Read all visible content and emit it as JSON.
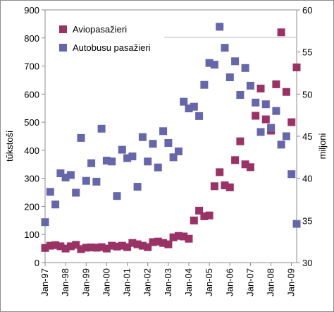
{
  "chart_data": {
    "type": "scatter",
    "title": "",
    "xlabel": "",
    "ylabel_left": "tūkstoši",
    "ylabel_right": "miljoni",
    "ylim_left": [
      0,
      900
    ],
    "ylim_right": [
      30,
      60
    ],
    "yticks_left": [
      "0",
      "100",
      "200",
      "300",
      "400",
      "500",
      "600",
      "700",
      "800",
      "900"
    ],
    "yticks_right": [
      "30",
      "35",
      "40",
      "45",
      "50",
      "55",
      "60"
    ],
    "x_range": [
      1997.0,
      2009.25
    ],
    "x_ticks": [
      {
        "x": 1997.0,
        "label": "Jan-97"
      },
      {
        "x": 1998.0,
        "label": "Jan-98"
      },
      {
        "x": 1999.0,
        "label": "Jan-99"
      },
      {
        "x": 2000.0,
        "label": "Jan-00"
      },
      {
        "x": 2001.0,
        "label": "Jan-01"
      },
      {
        "x": 2002.0,
        "label": "Jan-02"
      },
      {
        "x": 2003.0,
        "label": "Jan-03"
      },
      {
        "x": 2004.0,
        "label": "Jan-04"
      },
      {
        "x": 2005.0,
        "label": "Jan-05"
      },
      {
        "x": 2006.0,
        "label": "Jan-06"
      },
      {
        "x": 2007.0,
        "label": "Jan-07"
      },
      {
        "x": 2008.0,
        "label": "Jan-08"
      },
      {
        "x": 2009.0,
        "label": "Jan-09"
      }
    ],
    "grid": false,
    "legend_position": "top-left",
    "series": [
      {
        "name": "Aviopasažieri",
        "axis": "left",
        "color": "#993366",
        "points": [
          [
            1997.0,
            52
          ],
          [
            1997.25,
            60
          ],
          [
            1997.5,
            62
          ],
          [
            1997.75,
            58
          ],
          [
            1998.0,
            50
          ],
          [
            1998.25,
            58
          ],
          [
            1998.5,
            63
          ],
          [
            1998.75,
            48
          ],
          [
            1999.0,
            53
          ],
          [
            1999.25,
            54
          ],
          [
            1999.5,
            53
          ],
          [
            1999.75,
            55
          ],
          [
            2000.0,
            50
          ],
          [
            2000.25,
            60
          ],
          [
            2000.5,
            57
          ],
          [
            2000.75,
            60
          ],
          [
            2001.0,
            55
          ],
          [
            2001.25,
            70
          ],
          [
            2001.5,
            65
          ],
          [
            2001.75,
            60
          ],
          [
            2002.0,
            55
          ],
          [
            2002.25,
            73
          ],
          [
            2002.5,
            75
          ],
          [
            2002.75,
            70
          ],
          [
            2003.0,
            65
          ],
          [
            2003.25,
            90
          ],
          [
            2003.5,
            95
          ],
          [
            2003.75,
            93
          ],
          [
            2004.0,
            85
          ],
          [
            2004.25,
            150
          ],
          [
            2004.5,
            185
          ],
          [
            2004.75,
            165
          ],
          [
            2005.0,
            168
          ],
          [
            2005.25,
            272
          ],
          [
            2005.5,
            322
          ],
          [
            2005.75,
            275
          ],
          [
            2006.0,
            268
          ],
          [
            2006.25,
            365
          ],
          [
            2006.5,
            432
          ],
          [
            2006.75,
            350
          ],
          [
            2007.0,
            340
          ],
          [
            2007.25,
            523
          ],
          [
            2007.5,
            620
          ],
          [
            2007.75,
            510
          ],
          [
            2008.0,
            470
          ],
          [
            2008.25,
            635
          ],
          [
            2008.5,
            820
          ],
          [
            2008.75,
            608
          ],
          [
            2009.0,
            500
          ],
          [
            2009.25,
            695
          ]
        ]
      },
      {
        "name": "Autobusu pasažieri",
        "axis": "right",
        "color": "#6666aa",
        "points": [
          [
            1997.0,
            34.8
          ],
          [
            1997.25,
            38.4
          ],
          [
            1997.5,
            36.9
          ],
          [
            1997.75,
            40.6
          ],
          [
            1998.0,
            40.1
          ],
          [
            1998.25,
            40.4
          ],
          [
            1998.5,
            38.3
          ],
          [
            1998.75,
            44.8
          ],
          [
            1999.0,
            39.7
          ],
          [
            1999.25,
            41.8
          ],
          [
            1999.5,
            39.6
          ],
          [
            1999.75,
            45.9
          ],
          [
            2000.0,
            42.1
          ],
          [
            2000.25,
            42.0
          ],
          [
            2000.5,
            37.9
          ],
          [
            2000.75,
            43.4
          ],
          [
            2001.0,
            42.4
          ],
          [
            2001.25,
            42.6
          ],
          [
            2001.5,
            39.0
          ],
          [
            2001.75,
            44.9
          ],
          [
            2002.0,
            42.0
          ],
          [
            2002.25,
            44.1
          ],
          [
            2002.5,
            41.3
          ],
          [
            2002.75,
            45.6
          ],
          [
            2003.0,
            44.2
          ],
          [
            2003.25,
            42.5
          ],
          [
            2003.5,
            43.2
          ],
          [
            2003.75,
            49.1
          ],
          [
            2004.0,
            48.3
          ],
          [
            2004.25,
            48.5
          ],
          [
            2004.5,
            47.4
          ],
          [
            2004.75,
            51.1
          ],
          [
            2005.0,
            53.7
          ],
          [
            2005.25,
            53.5
          ],
          [
            2005.5,
            58.0
          ],
          [
            2005.75,
            55.5
          ],
          [
            2006.0,
            52.0
          ],
          [
            2006.25,
            53.9
          ],
          [
            2006.5,
            49.9
          ],
          [
            2006.75,
            53.1
          ],
          [
            2007.0,
            51.0
          ],
          [
            2007.25,
            49.0
          ],
          [
            2007.5,
            45.5
          ],
          [
            2007.75,
            48.8
          ],
          [
            2008.0,
            46.0
          ],
          [
            2008.25,
            48.0
          ],
          [
            2008.5,
            44.0
          ],
          [
            2008.75,
            45.0
          ],
          [
            2009.0,
            40.5
          ],
          [
            2009.25,
            34.6
          ]
        ]
      }
    ]
  }
}
